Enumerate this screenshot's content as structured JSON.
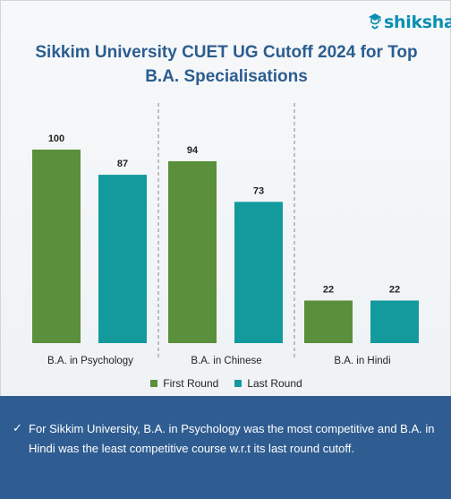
{
  "brand": {
    "name": "shiksha",
    "icon": "graduation-cap-icon",
    "color": "#0b8fb0"
  },
  "title_line1": "Sikkim University CUET UG Cutoff 2024 for Top",
  "title_line2": "B.A. Specialisations",
  "chart_data": {
    "type": "bar",
    "title": "Sikkim University CUET UG Cutoff 2024 for Top B.A. Specialisations",
    "categories": [
      "B.A. in Psychology",
      "B.A. in Chinese",
      "B.A. in Hindi"
    ],
    "series": [
      {
        "name": "First Round",
        "values": [
          100,
          94,
          22
        ],
        "color": "#5a8f3b"
      },
      {
        "name": "Last Round",
        "values": [
          87,
          73,
          22
        ],
        "color": "#129a9c"
      }
    ],
    "ylim": [
      0,
      100
    ],
    "grid": false,
    "legend_position": "bottom",
    "data_labels": true
  },
  "legend": {
    "first": "First Round",
    "last": "Last Round"
  },
  "note": {
    "icon": "checkmark-icon",
    "text": "For Sikkim University, B.A. in Psychology was the most competitive and B.A. in Hindi was the least competitive course w.r.t its last round cutoff."
  },
  "colors": {
    "title": "#2c5d8f",
    "footer": "#2f5d91",
    "divider": "#888888"
  }
}
